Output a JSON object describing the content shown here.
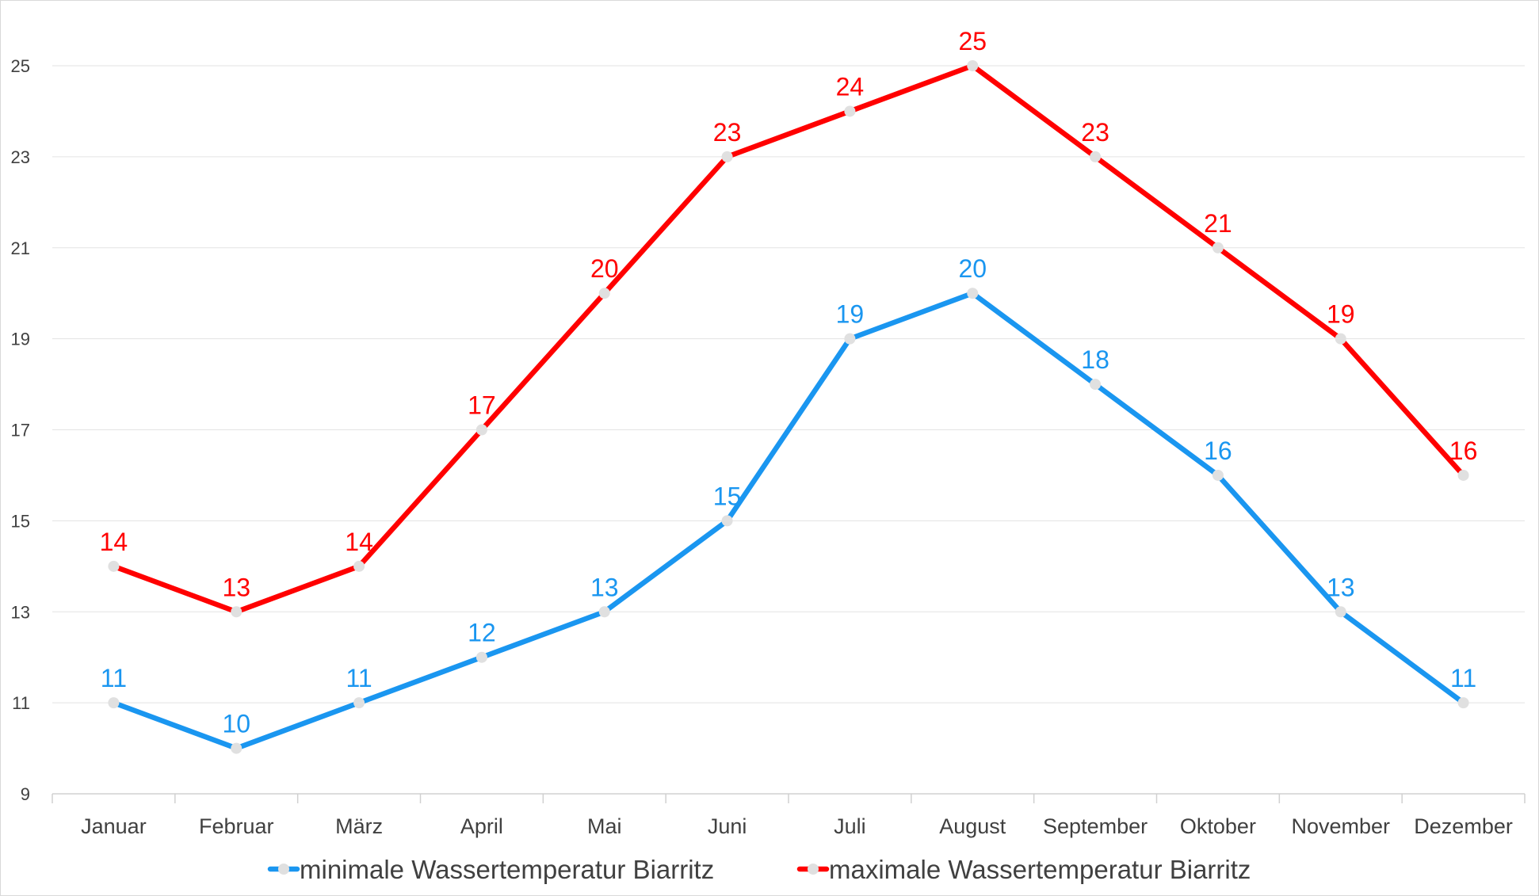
{
  "chart_data": {
    "type": "line",
    "title": "",
    "xlabel": "",
    "ylabel": "",
    "categories": [
      "Januar",
      "Februar",
      "März",
      "April",
      "Mai",
      "Juni",
      "Juli",
      "August",
      "September",
      "Oktober",
      "November",
      "Dezember"
    ],
    "ylim": [
      9,
      25
    ],
    "yticks": [
      9,
      11,
      13,
      15,
      17,
      19,
      21,
      23,
      25
    ],
    "grid": true,
    "legend_position": "bottom",
    "data_labels": true,
    "series": [
      {
        "name": "minimale Wassertemperatur Biarritz",
        "color": "#1a96f0",
        "values": [
          11,
          10,
          11,
          12,
          13,
          15,
          19,
          20,
          18,
          16,
          13,
          11
        ]
      },
      {
        "name": "maximale Wassertemperatur Biarritz",
        "color": "#ff0000",
        "values": [
          14,
          13,
          14,
          17,
          20,
          23,
          24,
          25,
          23,
          21,
          19,
          16
        ]
      }
    ],
    "marker_color": "#e0e0e0"
  }
}
